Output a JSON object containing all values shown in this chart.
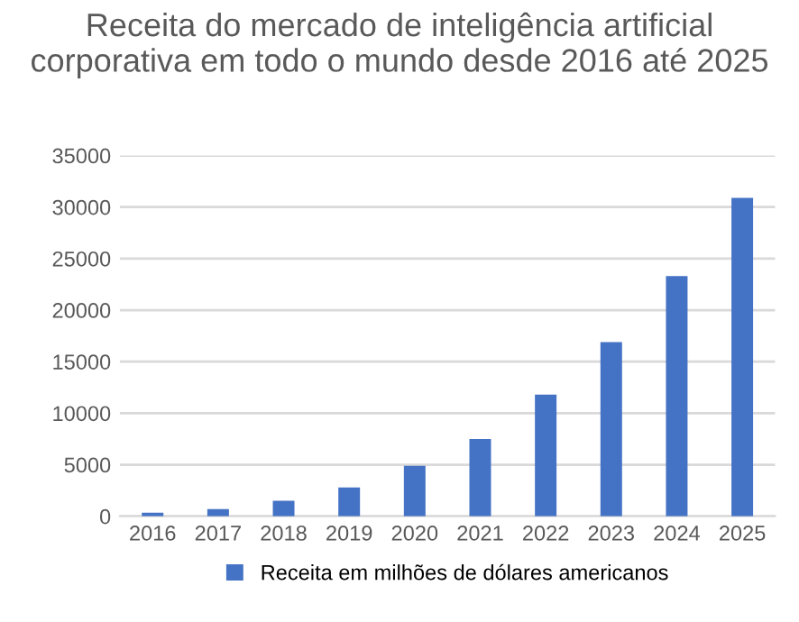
{
  "chart_data": {
    "type": "bar",
    "title": "Receita do mercado de inteligência artificial corporativa em todo o mundo desde 2016 até 2025",
    "categories": [
      "2016",
      "2017",
      "2018",
      "2019",
      "2020",
      "2021",
      "2022",
      "2023",
      "2024",
      "2025"
    ],
    "series": [
      {
        "name": "Receita em milhões de dólares americanos",
        "color": "#4472c4",
        "values": [
          350,
          700,
          1500,
          2800,
          4900,
          7500,
          11800,
          16900,
          23300,
          30900
        ]
      }
    ],
    "ylim": [
      0,
      35000
    ],
    "yticks": [
      0,
      5000,
      10000,
      15000,
      20000,
      25000,
      30000,
      35000
    ],
    "grid": "y",
    "legend": "bottom"
  }
}
